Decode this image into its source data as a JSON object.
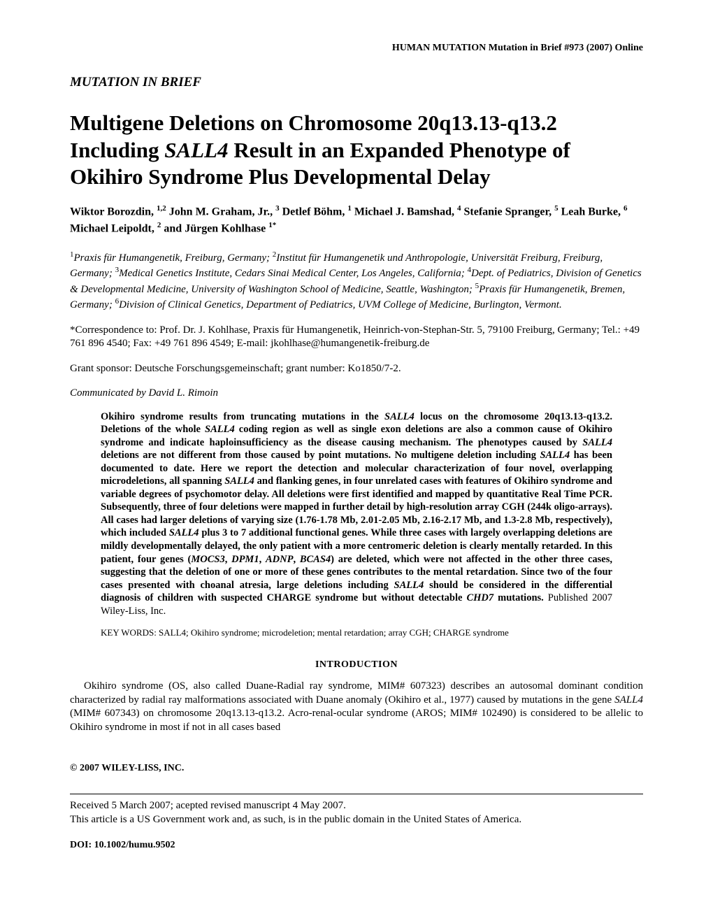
{
  "header": {
    "journal_header": "HUMAN MUTATION  Mutation in Brief #973 (2007) Online"
  },
  "section_label": "MUTATION IN BRIEF",
  "title": {
    "line1": "Multigene Deletions on Chromosome 20q13.13-q13.2 Including ",
    "gene": "SALL4",
    "line2": " Result in an Expanded Phenotype of Okihiro Syndrome Plus Developmental Delay"
  },
  "authors_html": "Wiktor Borozdin, <sup>1,2</sup> John M. Graham, Jr., <sup>3</sup> Detlef Böhm, <sup>1</sup> Michael J. Bamshad, <sup>4</sup> Stefanie Spranger, <sup>5</sup> Leah Burke, <sup>6</sup> Michael Leipoldt, <sup>2</sup> and Jürgen Kohlhase <sup>1*</sup>",
  "affiliations_html": "<sup>1</sup>Praxis für Humangenetik, Freiburg, Germany; <sup>2</sup>Institut für Humangenetik und Anthropologie, Universität Freiburg, Freiburg, Germany; <sup>3</sup>Medical Genetics Institute, Cedars Sinai Medical Center, Los Angeles, California; <sup>4</sup>Dept. of Pediatrics, Division of Genetics & Developmental Medicine, University of Washington School of Medicine, Seattle, Washington; <sup>5</sup>Praxis für Humangenetik, Bremen, Germany; <sup>6</sup>Division of Clinical Genetics, Department of Pediatrics, UVM College of Medicine, Burlington, Vermont.",
  "correspondence": "*Correspondence to: Prof. Dr. J. Kohlhase, Praxis für Humangenetik, Heinrich-von-Stephan-Str. 5, 79100 Freiburg, Germany; Tel.: +49 761 896 4540; Fax: +49 761 896 4549; E-mail: jkohlhase@humangenetik-freiburg.de",
  "grant": "Grant sponsor: Deutsche Forschungsgemeinschaft; grant number: Ko1850/7-2.",
  "communicated": "Communicated by David L. Rimoin",
  "abstract_html": "<b>Okihiro syndrome results from truncating mutations in the <span class=\"gene\">SALL4</span> locus on the chromosome 20q13.13-q13.2. Deletions of the whole <span class=\"gene\">SALL4</span> coding region as well as single exon deletions are also a common cause of Okihiro syndrome and indicate haploinsufficiency as the disease causing mechanism. The phenotypes caused by <span class=\"gene\">SALL4</span> deletions are not different from those caused by point mutations. No multigene deletion including <span class=\"gene\">SALL4</span> has been documented to date. Here we report the detection and molecular characterization of four novel, overlapping microdeletions, all spanning <span class=\"gene\">SALL4</span> and flanking genes, in four unrelated cases with features of Okihiro syndrome and variable degrees of psychomotor delay. All deletions were first identified and mapped by quantitative Real Time PCR. Subsequently, three of four deletions were mapped in further detail by high-resolution array CGH (244k oligo-arrays). All cases had larger deletions of varying size (1.76-1.78 Mb, 2.01-2.05 Mb, 2.16-2.17 Mb, and 1.3-2.8 Mb, respectively), which included <span class=\"gene\">SALL4</span> plus 3 to 7 additional functional genes. While three cases with largely overlapping deletions are mildly developmentally delayed, the only patient with a more centromeric deletion is clearly mentally retarded. In this patient, four genes (<span class=\"gene\">MOCS3</span>, <span class=\"gene\">DPM1</span>, <span class=\"gene\">ADNP</span>, <span class=\"gene\">BCAS4</span>) are deleted, which were not affected in the other three cases, suggesting that the deletion of one or more of these genes contributes to the mental retardation. Since two of the four cases presented with choanal atresia, large deletions including <span class=\"gene\">SALL4</span> should be considered in the differential diagnosis of children with suspected CHARGE syndrome but without detectable <span class=\"gene\">CHD7</span> mutations.</b> Published 2007 Wiley-Liss, Inc.",
  "keywords": "KEY WORDS:  SALL4; Okihiro syndrome; microdeletion; mental retardation; array CGH; CHARGE syndrome",
  "intro": {
    "heading": "INTRODUCTION",
    "body_html": "Okihiro syndrome (OS, also called Duane-Radial ray syndrome, MIM# 607323) describes an autosomal dominant condition characterized by radial ray malformations associated with Duane anomaly (Okihiro et al., 1977) caused by mutations in the gene <span class=\"gene\">SALL4</span> (MIM# 607343) on chromosome 20q13.13-q13.2. Acro-renal-ocular syndrome (AROS; MIM# 102490) is considered to be allelic to Okihiro syndrome in most if not in all cases based"
  },
  "copyright": "© 2007 WILEY-LISS, INC.",
  "received": "Received 5 March 2007; acepted revised manuscript 4 May 2007.\nThis article is a US Government work and, as such, is in the public domain in the United States of America.",
  "doi": "DOI: 10.1002/humu.9502"
}
